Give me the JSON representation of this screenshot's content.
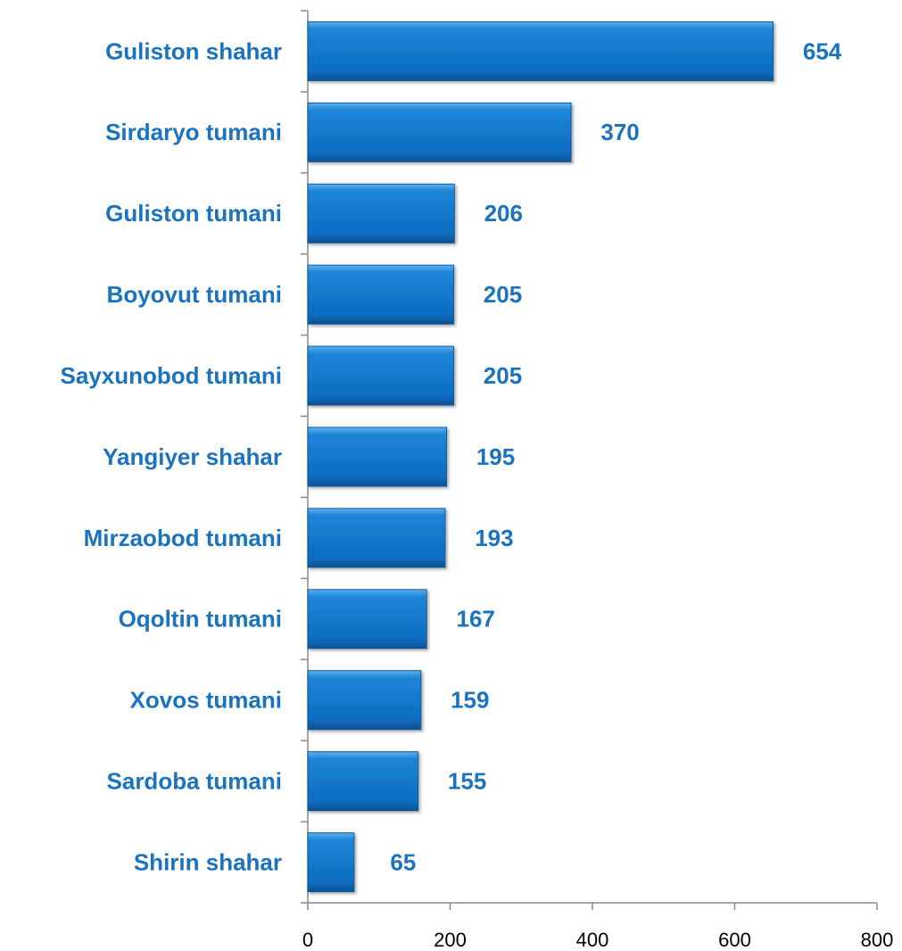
{
  "chart_data": {
    "type": "barh",
    "categories": [
      "Guliston shahar",
      "Sirdaryo tumani",
      "Guliston tumani",
      "Boyovut tumani",
      "Sayxunobod tumani",
      "Yangiyer shahar",
      "Mirzaobod tumani",
      "Oqoltin tumani",
      "Xovos tumani",
      "Sardoba tumani",
      "Shirin shahar"
    ],
    "values": [
      654,
      370,
      206,
      205,
      205,
      195,
      193,
      167,
      159,
      155,
      65
    ],
    "color": "#0a72c8",
    "xlim": [
      0,
      800
    ],
    "xticks": [
      0,
      200,
      400,
      600,
      800
    ]
  }
}
